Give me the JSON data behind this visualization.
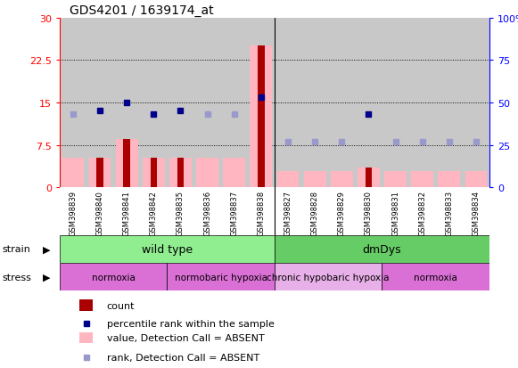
{
  "title": "GDS4201 / 1639174_at",
  "samples": [
    "GSM398839",
    "GSM398840",
    "GSM398841",
    "GSM398842",
    "GSM398835",
    "GSM398836",
    "GSM398837",
    "GSM398838",
    "GSM398827",
    "GSM398828",
    "GSM398829",
    "GSM398830",
    "GSM398831",
    "GSM398832",
    "GSM398833",
    "GSM398834"
  ],
  "value_bar_heights": [
    5.2,
    5.2,
    8.5,
    5.2,
    5.2,
    5.2,
    5.2,
    25.0,
    2.8,
    2.8,
    2.8,
    3.5,
    2.8,
    2.8,
    2.8,
    2.8
  ],
  "count_present": [
    false,
    true,
    true,
    true,
    true,
    false,
    false,
    true,
    false,
    false,
    false,
    true,
    false,
    false,
    false,
    false
  ],
  "rank_values_pct": [
    43,
    45,
    50,
    43,
    45,
    43,
    43,
    53,
    27,
    27,
    27,
    43,
    27,
    27,
    27,
    27
  ],
  "rank_present": [
    false,
    true,
    true,
    true,
    true,
    false,
    false,
    true,
    false,
    false,
    false,
    true,
    false,
    false,
    false,
    false
  ],
  "ylim_left": [
    0,
    30
  ],
  "ylim_right": [
    0,
    100
  ],
  "yticks_left": [
    0,
    7.5,
    15,
    22.5,
    30
  ],
  "yticks_right": [
    0,
    25,
    50,
    75,
    100
  ],
  "color_count_present": "#aa0000",
  "color_count_absent": "#ffb6c1",
  "color_rank_present": "#00008b",
  "color_rank_absent": "#9999cc",
  "color_strain_wt": "#90ee90",
  "color_strain_dm": "#66cc66",
  "color_stress_main": "#da70d6",
  "color_stress_light": "#e8b0e8",
  "color_bg": "#c8c8c8",
  "color_xticklabels_bg": "#c8c8c8",
  "strain_split": 8,
  "stress_splits": [
    0,
    4,
    8,
    12,
    16
  ],
  "stress_labels": [
    "normoxia",
    "normobaric hypoxia",
    "chronic hypobaric hypoxia",
    "normoxia"
  ],
  "stress_colors": [
    "#da70d6",
    "#da70d6",
    "#e8b0e8",
    "#da70d6"
  ]
}
